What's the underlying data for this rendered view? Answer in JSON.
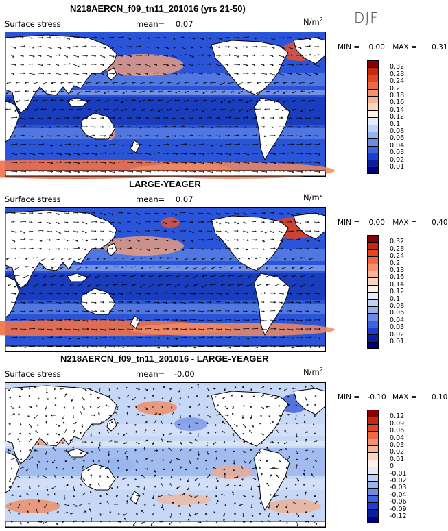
{
  "season": "DJF",
  "chart_data": [
    {
      "type": "heatmap",
      "title": "N218AERCN_f09_tn11_201016 (yrs 21-50)",
      "variable": "Surface stress",
      "mean_label": "mean=",
      "mean_value": "0.07",
      "units": "N/m",
      "units_sup": "2",
      "min_label": "MIN =",
      "min_value": "0.00",
      "max_label": "MAX =",
      "max_value": "0.31",
      "levels": [
        "0.32",
        "0.28",
        "0.24",
        "0.2",
        "0.18",
        "0.16",
        "0.14",
        "0.12",
        "0.1",
        "0.08",
        "0.06",
        "0.04",
        "0.03",
        "0.02",
        "0.01"
      ],
      "colors": [
        "#8b0000",
        "#c62a0c",
        "#e4471f",
        "#ef6a42",
        "#f4916e",
        "#f7b496",
        "#fad6c2",
        "#fdf0e6",
        "#e3ecfb",
        "#bfd2f6",
        "#96b3ee",
        "#6b8ce5",
        "#3f63dc",
        "#1e3ecd",
        "#0a1f9e",
        "#00007a"
      ]
    },
    {
      "type": "heatmap",
      "title": "LARGE-YEAGER",
      "variable": "Surface stress",
      "mean_label": "mean=",
      "mean_value": "0.07",
      "units": "N/m",
      "units_sup": "2",
      "min_label": "MIN =",
      "min_value": "0.00",
      "max_label": "MAX =",
      "max_value": "0.40",
      "levels": [
        "0.32",
        "0.28",
        "0.24",
        "0.2",
        "0.18",
        "0.16",
        "0.14",
        "0.12",
        "0.1",
        "0.08",
        "0.06",
        "0.04",
        "0.03",
        "0.02",
        "0.01"
      ],
      "colors": [
        "#8b0000",
        "#c62a0c",
        "#e4471f",
        "#ef6a42",
        "#f4916e",
        "#f7b496",
        "#fad6c2",
        "#fdf0e6",
        "#e3ecfb",
        "#bfd2f6",
        "#96b3ee",
        "#6b8ce5",
        "#3f63dc",
        "#1e3ecd",
        "#0a1f9e",
        "#00007a"
      ]
    },
    {
      "type": "heatmap",
      "title": "N218AERCN_f09_tn11_201016 - LARGE-YEAGER",
      "variable": "Surface stress",
      "mean_label": "mean=",
      "mean_value": "-0.00",
      "units": "N/m",
      "units_sup": "2",
      "min_label": "MIN =",
      "min_value": "-0.10",
      "max_label": "MAX =",
      "max_value": "0.10",
      "levels": [
        "0.12",
        "0.09",
        "0.06",
        "0.04",
        "0.03",
        "0.02",
        "0.01",
        "0",
        "-0.01",
        "-0.02",
        "-0.03",
        "-0.04",
        "-0.06",
        "-0.09",
        "-0.12"
      ],
      "colors": [
        "#8b0000",
        "#c62a0c",
        "#e4471f",
        "#ef6a42",
        "#f4916e",
        "#f7b496",
        "#fad6c2",
        "#fdf0e6",
        "#e3ecfb",
        "#bfd2f6",
        "#96b3ee",
        "#6b8ce5",
        "#3f63dc",
        "#1e3ecd",
        "#0a1f9e",
        "#00007a"
      ]
    }
  ]
}
